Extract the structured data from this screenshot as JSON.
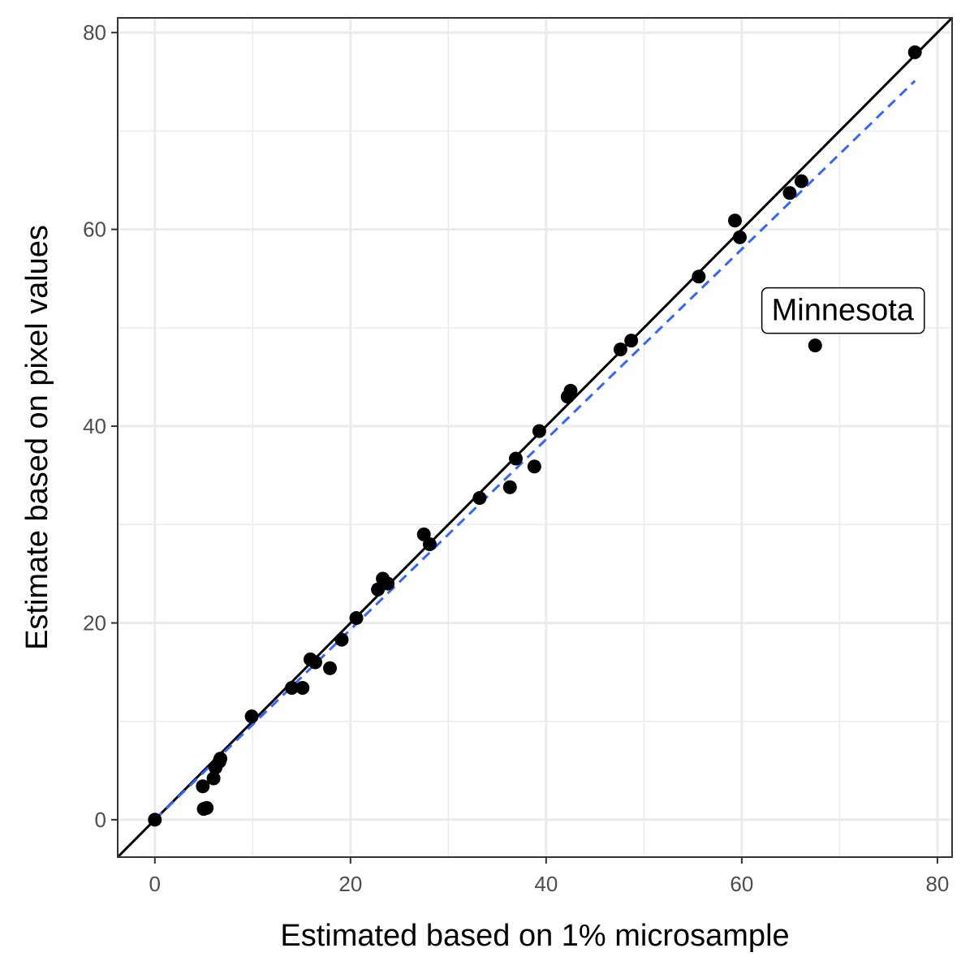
{
  "chart_data": {
    "type": "scatter",
    "title": "",
    "xlabel": "Estimated based on 1% microsample",
    "ylabel": "Estimate based on pixel values",
    "xlim": [
      -3.8,
      81.5
    ],
    "ylim": [
      -3.8,
      81.5
    ],
    "x_ticks": [
      0,
      20,
      40,
      60,
      80
    ],
    "y_ticks": [
      0,
      20,
      40,
      60,
      80
    ],
    "grid": true,
    "legend": "none",
    "points": [
      {
        "x": 0.0,
        "y": 0.0
      },
      {
        "x": 5.0,
        "y": 1.1
      },
      {
        "x": 5.3,
        "y": 1.2
      },
      {
        "x": 4.9,
        "y": 3.4
      },
      {
        "x": 6.0,
        "y": 4.2
      },
      {
        "x": 6.2,
        "y": 5.3
      },
      {
        "x": 6.6,
        "y": 5.9
      },
      {
        "x": 6.7,
        "y": 6.2
      },
      {
        "x": 9.9,
        "y": 10.5
      },
      {
        "x": 14.0,
        "y": 13.4
      },
      {
        "x": 15.1,
        "y": 13.4
      },
      {
        "x": 15.9,
        "y": 16.3
      },
      {
        "x": 16.4,
        "y": 16.0
      },
      {
        "x": 17.9,
        "y": 15.4
      },
      {
        "x": 19.1,
        "y": 18.3
      },
      {
        "x": 20.6,
        "y": 20.5
      },
      {
        "x": 22.8,
        "y": 23.4
      },
      {
        "x": 23.3,
        "y": 24.5
      },
      {
        "x": 23.8,
        "y": 24.0
      },
      {
        "x": 27.5,
        "y": 29.0
      },
      {
        "x": 28.1,
        "y": 28.0
      },
      {
        "x": 33.2,
        "y": 32.7
      },
      {
        "x": 36.3,
        "y": 33.8
      },
      {
        "x": 36.9,
        "y": 36.7
      },
      {
        "x": 38.8,
        "y": 35.9
      },
      {
        "x": 39.3,
        "y": 39.5
      },
      {
        "x": 42.2,
        "y": 43.0
      },
      {
        "x": 42.5,
        "y": 43.6
      },
      {
        "x": 47.6,
        "y": 47.8
      },
      {
        "x": 48.7,
        "y": 48.7
      },
      {
        "x": 55.6,
        "y": 55.2
      },
      {
        "x": 59.3,
        "y": 60.9
      },
      {
        "x": 59.8,
        "y": 59.2
      },
      {
        "x": 64.9,
        "y": 63.7
      },
      {
        "x": 66.1,
        "y": 64.9
      },
      {
        "x": 67.5,
        "y": 48.2
      },
      {
        "x": 77.7,
        "y": 78.0
      }
    ],
    "reference_line": {
      "label": "y = x",
      "slope": 1,
      "intercept": 0,
      "color": "#000000",
      "style": "solid"
    },
    "fit_line": {
      "label": "fit",
      "from": [
        0,
        0
      ],
      "to": [
        77.7,
        75.1
      ],
      "color": "#3366ff",
      "style": "dashed"
    },
    "annotations": [
      {
        "text": "Minnesota",
        "x": 67.5,
        "y": 48.2
      }
    ],
    "colors": {
      "points": "#000000",
      "grid": "#ebebeb",
      "panel_border": "#333333"
    }
  }
}
